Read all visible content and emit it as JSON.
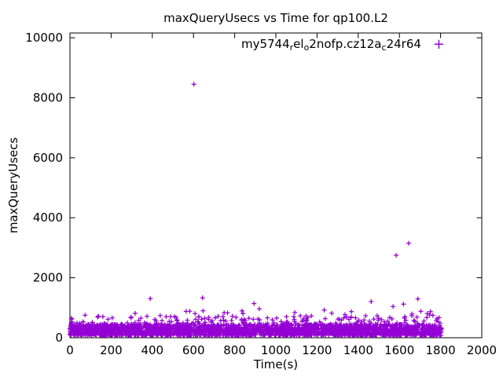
{
  "chart_data": {
    "type": "scatter",
    "title": "maxQueryUsecs vs Time for qp100.L2",
    "xlabel": "Time(s)",
    "ylabel": "maxQueryUsecs",
    "xlim": [
      0,
      2000
    ],
    "ylim": [
      0,
      10160
    ],
    "xticks": [
      0,
      200,
      400,
      600,
      800,
      1000,
      1200,
      1400,
      1600,
      1800,
      2000
    ],
    "yticks": [
      0,
      2000,
      4000,
      6000,
      8000,
      10000
    ],
    "grid": false,
    "background": "#ffffff",
    "axis_color": "#000000",
    "legend_position": "top-right-inside",
    "series": [
      {
        "name": "my5744_rel_o2nofp.cz12a_c24r64",
        "name_segments": [
          {
            "text": "my5744"
          },
          {
            "text": "r",
            "subscript": true
          },
          {
            "text": "el"
          },
          {
            "text": "o",
            "subscript": true
          },
          {
            "text": "2nofp.cz12a"
          },
          {
            "text": "c",
            "subscript": true
          },
          {
            "text": "24r64"
          }
        ],
        "marker": "plus",
        "color": "#9400d3",
        "outlier_points": [
          [
            602,
            8450
          ],
          [
            1645,
            3150
          ],
          [
            1584,
            2750
          ],
          [
            644,
            1330
          ],
          [
            894,
            1140
          ],
          [
            1620,
            1120
          ],
          [
            1092,
            840
          ],
          [
            841,
            800
          ],
          [
            564,
            880
          ],
          [
            1747,
            760
          ],
          [
            1779,
            570
          ],
          [
            625,
            700
          ],
          [
            160,
            700
          ],
          [
            1436,
            730
          ],
          [
            297,
            690
          ]
        ],
        "band": {
          "description": "dense noisy band of per-second samples",
          "x_start": 0,
          "x_end": 1805,
          "count": 2600,
          "y_core_min": 80,
          "y_core_max": 450,
          "mid_fraction": 0.16,
          "mid_extra_max": 260,
          "high_fraction": 0.02,
          "high_min": 580,
          "high_max": 900,
          "rare_fraction": 0.003,
          "rare_min": 900,
          "rare_max": 1340,
          "start_cluster": {
            "x_max": 14,
            "count": 14,
            "y_min": 280,
            "y_max": 660
          },
          "seed": 1337
        }
      }
    ]
  }
}
